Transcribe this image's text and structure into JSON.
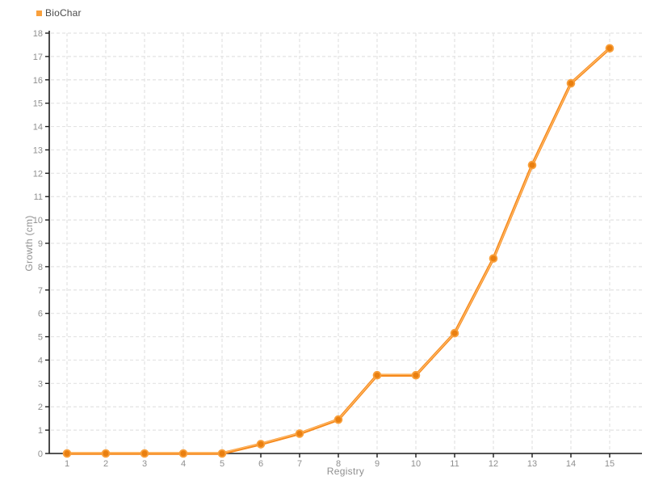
{
  "legend": {
    "label": "BioChar"
  },
  "axes": {
    "x_title": "Registry",
    "y_title": "Growth (cm)"
  },
  "colors": {
    "line": "#f5891d",
    "line_highlight": "#ffb763",
    "marker_fill": "#e97f10",
    "marker_stroke": "#f9a03c",
    "grid": "#e3e3e3",
    "axis": "#1c1c1c",
    "tick_label": "#8f8f8f",
    "legend_text": "#4a4a4a",
    "legend_swatch": "#f9a03c"
  },
  "chart_data": {
    "type": "line",
    "title": "",
    "x": [
      1,
      2,
      3,
      4,
      5,
      6,
      7,
      8,
      9,
      10,
      11,
      12,
      13,
      14,
      15
    ],
    "series": [
      {
        "name": "BioChar",
        "values": [
          0,
          0,
          0,
          0,
          0,
          0.4,
          0.85,
          1.45,
          3.35,
          3.35,
          5.15,
          8.35,
          12.35,
          15.85,
          17.35
        ]
      }
    ],
    "xlabel": "Registry",
    "ylabel": "Growth (cm)",
    "xlim": [
      1,
      15
    ],
    "ylim": [
      0,
      18
    ],
    "x_tick_step": 1,
    "y_tick_step": 1,
    "grid": true,
    "grid_style": "dashed",
    "legend_position": "top-left",
    "marker": "circle"
  }
}
